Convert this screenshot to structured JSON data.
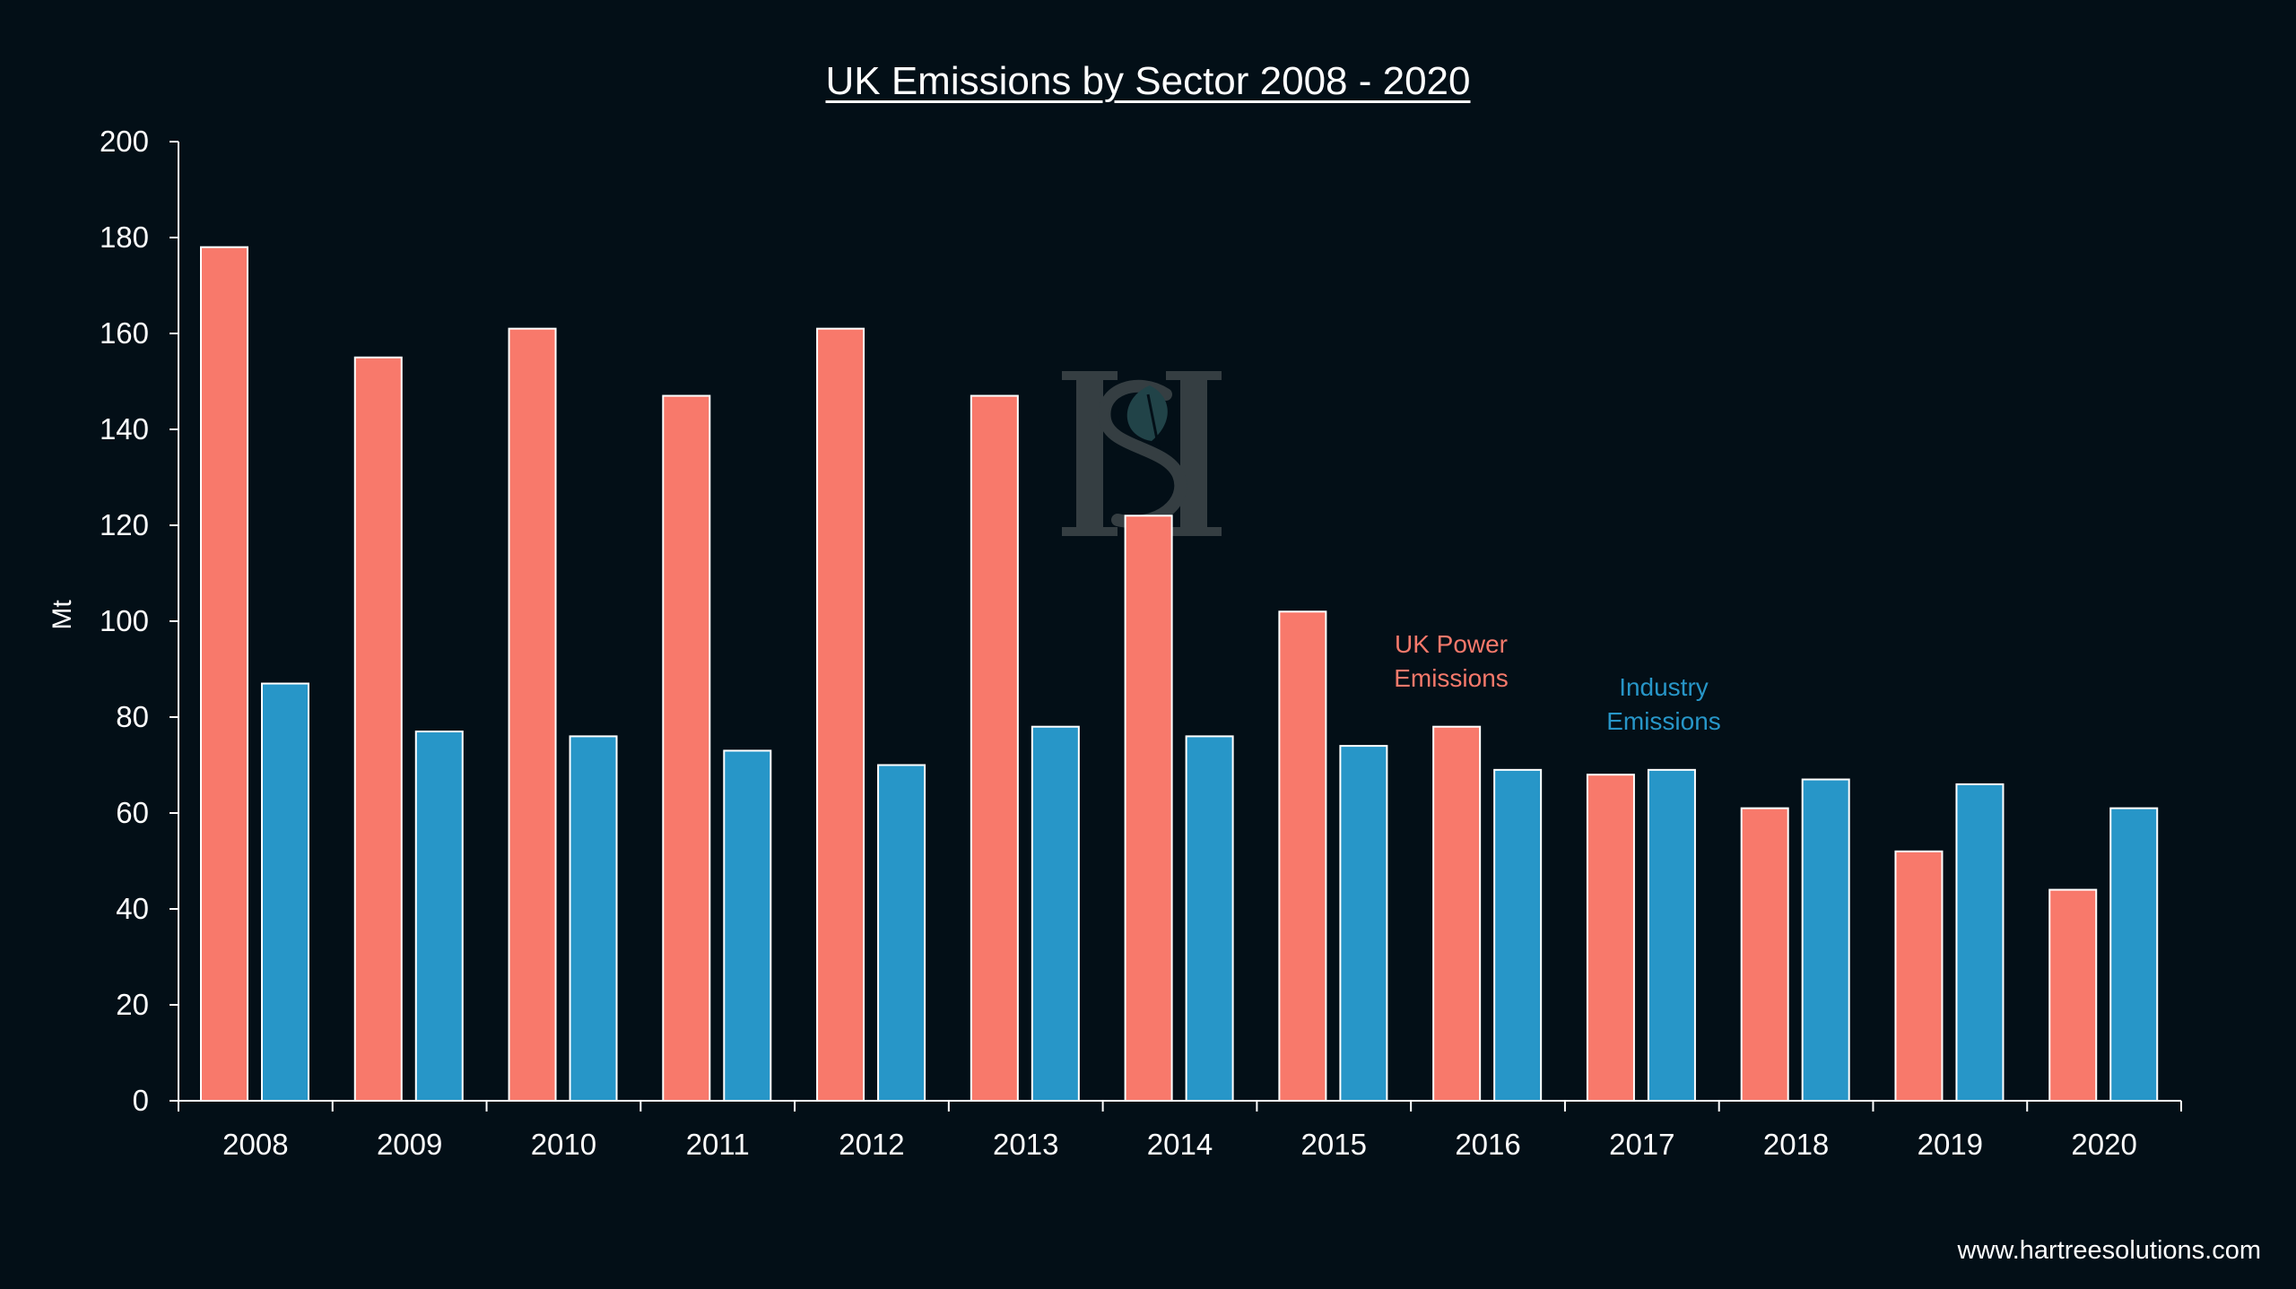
{
  "chart_data": {
    "type": "bar",
    "title": "UK Emissions by Sector 2008 - 2020",
    "ylabel": "Mt",
    "xlabel": "",
    "ylim": [
      0,
      200
    ],
    "yticks": [
      "0",
      "20",
      "40",
      "60",
      "80",
      "100",
      "120",
      "140",
      "160",
      "180",
      "200"
    ],
    "categories": [
      "2008",
      "2009",
      "2010",
      "2011",
      "2012",
      "2013",
      "2014",
      "2015",
      "2016",
      "2017",
      "2018",
      "2019",
      "2020"
    ],
    "series": [
      {
        "name": "UK Power\nEmissions",
        "color": "#f8796b",
        "values": [
          178,
          155,
          161,
          147,
          161,
          147,
          122,
          102,
          78,
          68,
          61,
          52,
          44
        ]
      },
      {
        "name": "Industry\nEmissions",
        "color": "#2796c8",
        "values": [
          87,
          77,
          76,
          73,
          70,
          78,
          76,
          74,
          69,
          69,
          67,
          66,
          61
        ]
      }
    ],
    "legend_placement": "inline annotations near 2016-2017",
    "grid": false
  },
  "watermark": {
    "text": "HS"
  },
  "footer": {
    "source": "www.hartreesolutions.com"
  },
  "colors": {
    "background": "#030f17",
    "axis": "#ffffff",
    "bar_border": "#ffffff",
    "watermark": "#3b4447"
  }
}
